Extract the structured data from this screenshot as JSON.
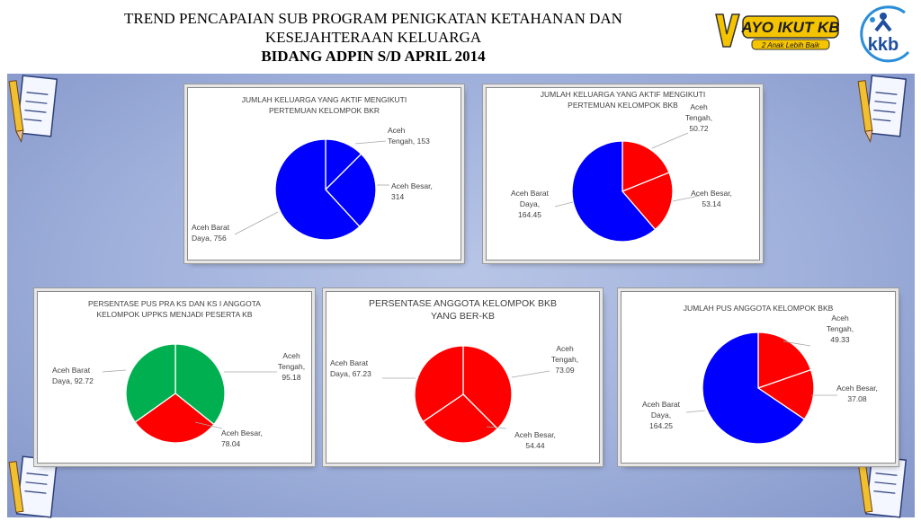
{
  "title": {
    "line1": "TREND PENCAPAIAN SUB PROGRAM PENIGKATAN KETAHANAN DAN",
    "line2": "KESEJAHTERAAN KELUARGA",
    "line3": "BIDANG ADPIN S/D  APRIL 2014"
  },
  "logos": {
    "ayo_text": "AYO IKUT KB",
    "ayo_sub": "2 Anak Lebih Baik",
    "kkb_text": "kkb"
  },
  "colors": {
    "blue": "#0000ff",
    "red": "#ff0000",
    "green": "#00b050",
    "stage": "#a4b4de"
  },
  "chart_data": [
    {
      "type": "pie",
      "title": "JUMLAH KELUARGA YANG AKTIF MENGIKUTI PERTEMUAN KELOMPOK BKR",
      "title_lines": [
        "JUMLAH KELUARGA YANG AKTIF MENGIKUTI",
        "PERTEMUAN KELOMPOK BKR"
      ],
      "slices": [
        {
          "name": "Aceh Tengah",
          "value": 153,
          "color": "#0000ff",
          "label_lines": [
            "Aceh",
            "Tengah, 153"
          ]
        },
        {
          "name": "Aceh Besar",
          "value": 314,
          "color": "#0000ff",
          "label_lines": [
            "Aceh Besar,",
            "314"
          ]
        },
        {
          "name": "Aceh Barat Daya",
          "value": 756,
          "color": "#0000ff",
          "label_lines": [
            "Aceh Barat",
            "Daya, 756"
          ]
        }
      ]
    },
    {
      "type": "pie",
      "title": "JUMLAH KELUARGA YANG AKTIF MENGIKUTI PERTEMUAN KELOMPOK BKB",
      "title_lines": [
        "JUMLAH KELUARGA YANG AKTIF MENGIKUTI",
        "PERTEMUAN KELOMPOK BKB"
      ],
      "slices": [
        {
          "name": "Aceh Tengah",
          "value": 50.72,
          "color": "#ff0000",
          "label_lines": [
            "Aceh",
            "Tengah,",
            "50.72"
          ]
        },
        {
          "name": "Aceh Besar",
          "value": 53.14,
          "color": "#ff0000",
          "label_lines": [
            "Aceh Besar,",
            "53.14"
          ]
        },
        {
          "name": "Aceh Barat Daya",
          "value": 164.45,
          "color": "#0000ff",
          "label_lines": [
            "Aceh Barat",
            "Daya,",
            "164.45"
          ]
        }
      ]
    },
    {
      "type": "pie",
      "title": "PERSENTASE PUS PRA KS DAN KS I ANGGOTA KELOMPOK UPPKS MENJADI PESERTA KB",
      "title_lines": [
        "PERSENTASE PUS PRA KS DAN KS I ANGGOTA",
        "KELOMPOK UPPKS MENJADI PESERTA KB"
      ],
      "slices": [
        {
          "name": "Aceh Tengah",
          "value": 95.18,
          "color": "#00b050",
          "label_lines": [
            "Aceh",
            "Tengah,",
            "95.18"
          ]
        },
        {
          "name": "Aceh Besar",
          "value": 78.04,
          "color": "#ff0000",
          "label_lines": [
            "Aceh Besar,",
            "78.04"
          ]
        },
        {
          "name": "Aceh Barat Daya",
          "value": 92.72,
          "color": "#00b050",
          "label_lines": [
            "Aceh Barat",
            "Daya, 92.72"
          ]
        }
      ]
    },
    {
      "type": "pie",
      "title": "PERSENTASE ANGGOTA KELOMPOK BKB YANG BER-KB",
      "title_lines": [
        "PERSENTASE ANGGOTA KELOMPOK BKB",
        "YANG BER-KB"
      ],
      "slices": [
        {
          "name": "Aceh Tengah",
          "value": 73.09,
          "color": "#ff0000",
          "label_lines": [
            "Aceh",
            "Tengah,",
            "73.09"
          ]
        },
        {
          "name": "Aceh Besar",
          "value": 54.44,
          "color": "#ff0000",
          "label_lines": [
            "Aceh Besar,",
            "54.44"
          ]
        },
        {
          "name": "Aceh Barat Daya",
          "value": 67.23,
          "color": "#ff0000",
          "label_lines": [
            "Aceh Barat",
            "Daya, 67.23"
          ]
        }
      ]
    },
    {
      "type": "pie",
      "title": "JUMLAH PUS ANGGOTA KELOMPOK BKB",
      "title_lines": [
        "JUMLAH PUS ANGGOTA KELOMPOK BKB"
      ],
      "slices": [
        {
          "name": "Aceh Tengah",
          "value": 49.33,
          "color": "#ff0000",
          "label_lines": [
            "Aceh",
            "Tengah,",
            "49.33"
          ]
        },
        {
          "name": "Aceh Besar",
          "value": 37.08,
          "color": "#ff0000",
          "label_lines": [
            "Aceh Besar,",
            "37.08"
          ]
        },
        {
          "name": "Aceh Barat Daya",
          "value": 164.25,
          "color": "#0000ff",
          "label_lines": [
            "Aceh Barat",
            "Daya,",
            "164.25"
          ]
        }
      ]
    }
  ]
}
